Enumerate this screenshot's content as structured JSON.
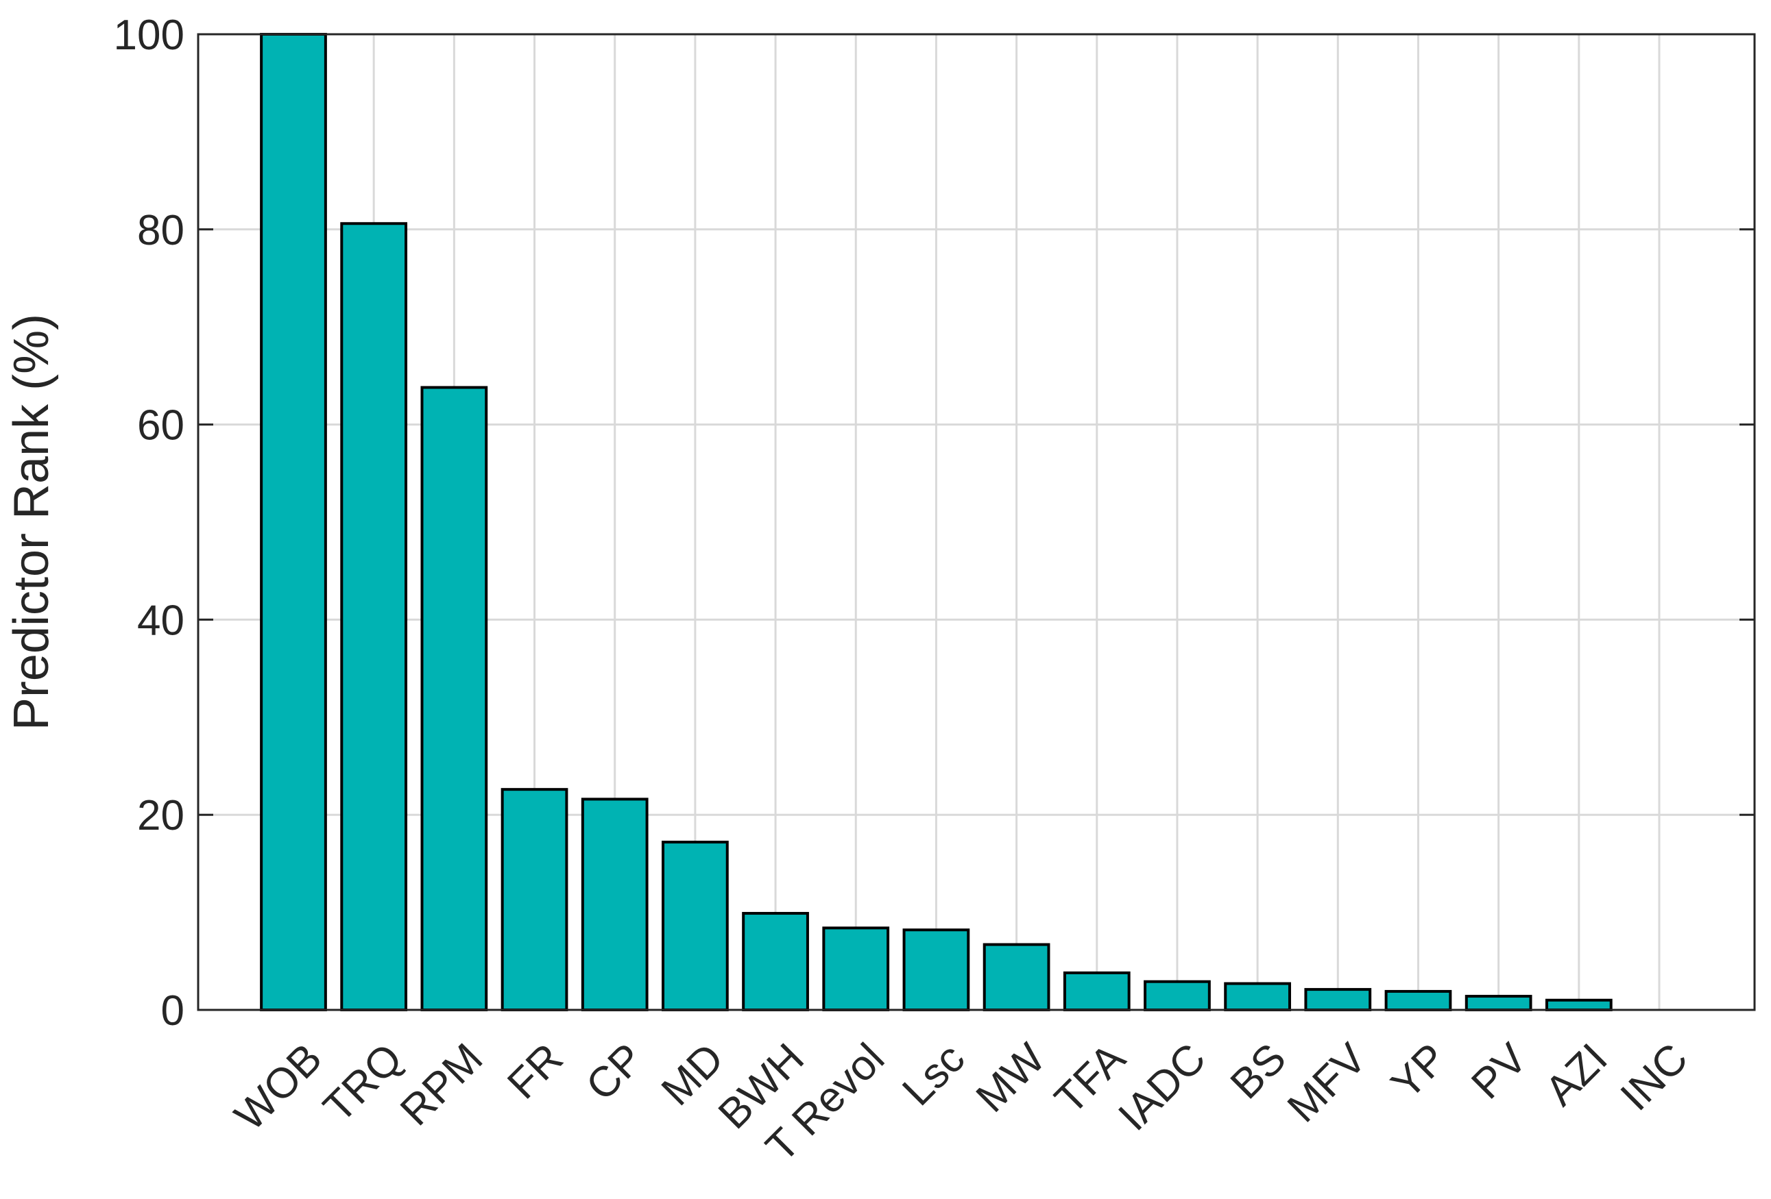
{
  "chart_data": {
    "type": "bar",
    "y_label": "Predictor Rank (%)",
    "categories": [
      "WOB",
      "TRQ",
      "RPM",
      "FR",
      "CP",
      "MD",
      "BWH",
      "T Revol",
      "Lsc",
      "MW",
      "TFA",
      "IADC",
      "BS",
      "MFV",
      "YP",
      "PV",
      "AZI",
      "INC"
    ],
    "values": [
      100,
      80.6,
      63.8,
      22.6,
      21.6,
      17.2,
      9.9,
      8.4,
      8.2,
      6.7,
      3.8,
      2.9,
      2.7,
      2.1,
      1.9,
      1.4,
      1.0,
      0
    ],
    "color": "#00b3b3",
    "ylim": [
      0,
      100
    ],
    "yticks": [
      0,
      20,
      40,
      60,
      80,
      100
    ],
    "grid": true
  }
}
